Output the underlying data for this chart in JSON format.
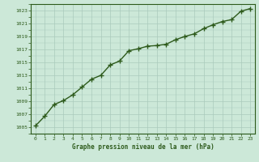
{
  "x": [
    0,
    1,
    2,
    3,
    4,
    5,
    6,
    7,
    8,
    9,
    10,
    11,
    12,
    13,
    14,
    15,
    16,
    17,
    18,
    19,
    20,
    21,
    22,
    23
  ],
  "y": [
    1005.2,
    1006.7,
    1008.5,
    1009.1,
    1010.0,
    1011.2,
    1012.4,
    1013.0,
    1014.6,
    1015.2,
    1016.8,
    1017.1,
    1017.5,
    1017.6,
    1017.8,
    1018.5,
    1019.0,
    1019.4,
    1020.2,
    1020.8,
    1021.3,
    1021.6,
    1022.9,
    1023.3
  ],
  "xlabel": "Graphe pression niveau de la mer (hPa)",
  "ylim": [
    1004,
    1024
  ],
  "xlim": [
    0,
    23
  ],
  "yticks": [
    1005,
    1007,
    1009,
    1011,
    1013,
    1015,
    1017,
    1019,
    1021,
    1023
  ],
  "xticks": [
    0,
    1,
    2,
    3,
    4,
    5,
    6,
    7,
    8,
    9,
    10,
    11,
    12,
    13,
    14,
    15,
    16,
    17,
    18,
    19,
    20,
    21,
    22,
    23
  ],
  "line_color": "#2d5a1b",
  "marker_color": "#2d5a1b",
  "bg_color": "#cce8d8",
  "grid_color": "#aacabc",
  "tick_color": "#2d5a1b",
  "label_color": "#2d5a1b",
  "marker": "+",
  "markersize": 4,
  "linewidth": 1.0
}
